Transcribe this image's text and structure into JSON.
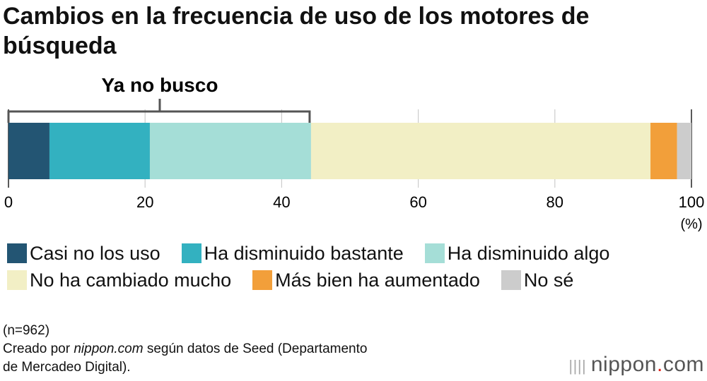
{
  "title": "Cambios en la frecuencia de uso de los motores de búsqueda",
  "chart_data": {
    "type": "bar",
    "orientation": "horizontal-stacked",
    "title": "Cambios en la frecuencia de uso de los motores de búsqueda",
    "xlim": [
      0,
      100
    ],
    "xticks": [
      "0",
      "20",
      "40",
      "60",
      "80",
      "100"
    ],
    "xlabel": "(%)",
    "grid": true,
    "legend_placement": "bottom",
    "series": [
      {
        "name": "Casi no los uso",
        "value": 6.0,
        "color": "#235573"
      },
      {
        "name": "Ha disminuido bastante",
        "value": 14.7,
        "color": "#33b1c0"
      },
      {
        "name": "Ha disminuido algo",
        "value": 23.6,
        "color": "#a5ded7"
      },
      {
        "name": "No ha cambiado mucho",
        "value": 49.7,
        "color": "#f2efc5"
      },
      {
        "name": "Más bien ha aumentado",
        "value": 3.9,
        "color": "#f29f3a"
      },
      {
        "name": "No sé",
        "value": 2.1,
        "color": "#cccccc"
      }
    ],
    "annotation": {
      "label": "Ya no busco",
      "covers_series": [
        "Casi no los uso",
        "Ha disminuido bastante",
        "Ha disminuido algo"
      ]
    }
  },
  "notes": {
    "n": "(n=962)",
    "source_pre": "Creado por ",
    "source_site": "nippon.com",
    "source_post": " según datos de Seed (Departamento",
    "source_line2": "de Mercadeo Digital)."
  },
  "logo": {
    "text1": "nippon",
    "dot": ".",
    "text2": "com"
  }
}
